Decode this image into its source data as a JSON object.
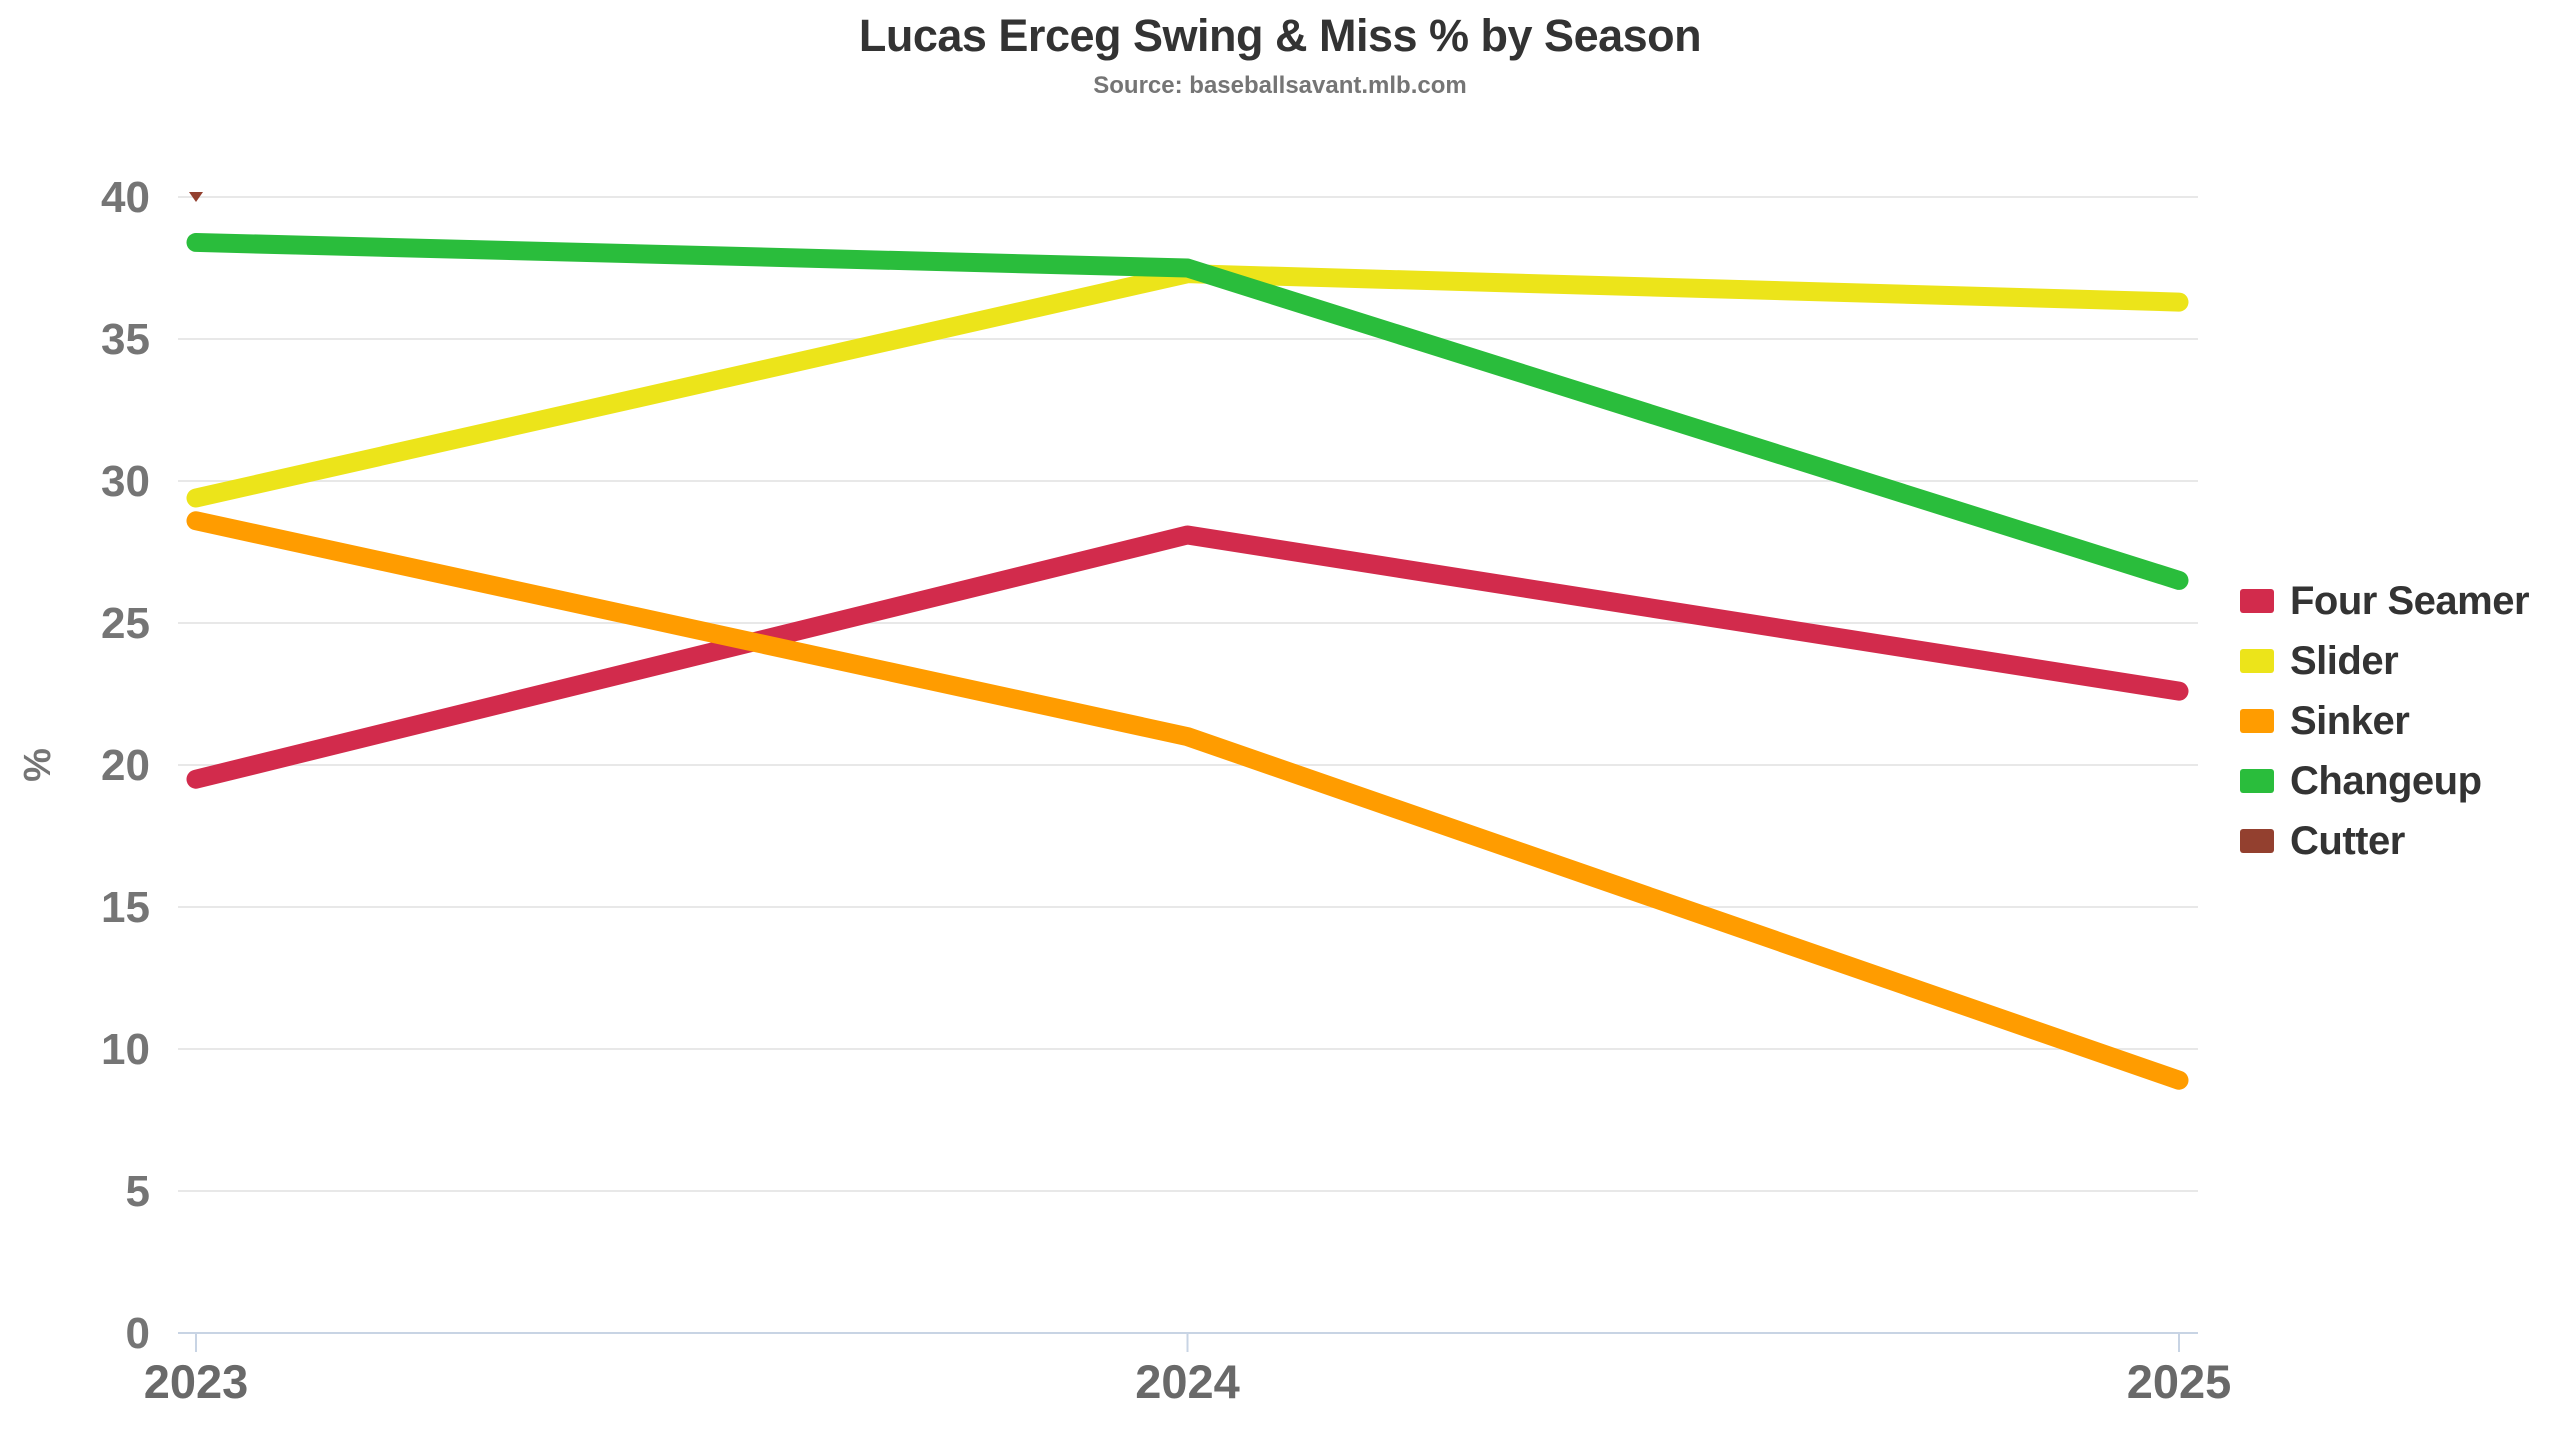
{
  "title": "Lucas Erceg Swing & Miss % by Season",
  "subtitle": "Source: baseballsavant.mlb.com",
  "chart_data": {
    "type": "line",
    "x": [
      "2023",
      "2024",
      "2025"
    ],
    "series": [
      {
        "name": "Four Seamer",
        "color": "#D22B4C",
        "values": [
          19.5,
          28.1,
          22.6
        ]
      },
      {
        "name": "Slider",
        "color": "#ECE41A",
        "values": [
          29.4,
          37.3,
          36.3
        ]
      },
      {
        "name": "Sinker",
        "color": "#FF9C00",
        "values": [
          28.6,
          21.0,
          8.9
        ]
      },
      {
        "name": "Changeup",
        "color": "#2ABD3C",
        "values": [
          38.4,
          37.5,
          26.5
        ]
      },
      {
        "name": "Cutter",
        "color": "#93402F",
        "values": [
          40.0,
          null,
          null
        ],
        "marker": "triangle-down"
      }
    ],
    "ylabel": "%",
    "ylim": [
      0,
      40
    ],
    "yticks": [
      0,
      5,
      10,
      15,
      20,
      25,
      30,
      35,
      40
    ],
    "grid": true,
    "legend_position": "right"
  },
  "style_colors": {
    "grid": "#E8E8E8",
    "axis": "#C8D4E4",
    "y_tick_label": "#757575",
    "x_tick_label": "#696969",
    "axis_title": "#757575"
  }
}
